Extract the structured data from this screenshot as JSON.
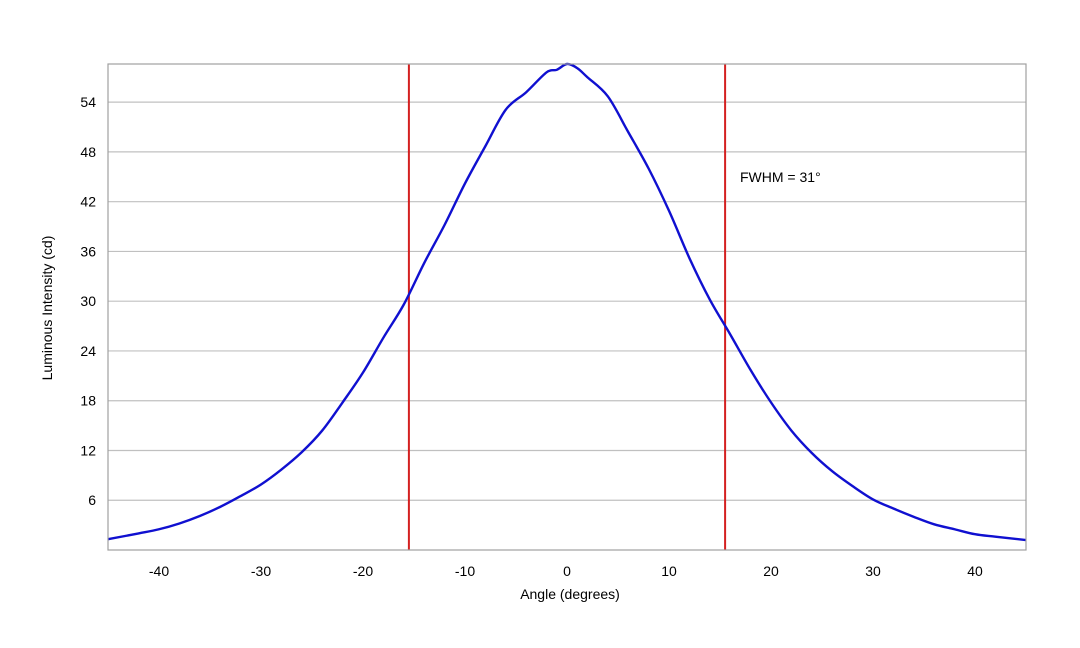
{
  "chart_data": {
    "type": "line",
    "title": "",
    "xlabel": "Angle (degrees)",
    "ylabel": "Luminous Intensity (cd)",
    "xlim": [
      -45,
      45
    ],
    "ylim": [
      0,
      58.6
    ],
    "x_ticks": [
      -40,
      -30,
      -20,
      -10,
      0,
      10,
      20,
      30,
      40
    ],
    "y_ticks": [
      6,
      12,
      18,
      24,
      30,
      36,
      42,
      48,
      54
    ],
    "grid": {
      "horizontal": true,
      "vertical": false
    },
    "annotation": "FWHM = 31°",
    "vertical_lines": [
      -15.5,
      15.5
    ],
    "colors": {
      "series": "#1010d0",
      "markers": "#d42020",
      "grid": "#c0c0c0",
      "frame": "#a0a0a0"
    },
    "series": [
      {
        "x": [
          -45,
          -42,
          -40,
          -38,
          -36,
          -34,
          -32,
          -30,
          -28,
          -26,
          -24,
          -22,
          -20,
          -18,
          -16,
          -14,
          -12,
          -10,
          -8,
          -6,
          -4,
          -2,
          -1,
          0,
          1,
          2,
          4,
          6,
          8,
          10,
          12,
          14,
          16,
          18,
          20,
          22,
          24,
          26,
          28,
          30,
          32,
          34,
          36,
          38,
          40,
          42,
          45
        ],
        "y": [
          1.3,
          2.0,
          2.5,
          3.2,
          4.1,
          5.2,
          6.5,
          7.9,
          9.7,
          11.8,
          14.4,
          17.8,
          21.4,
          25.6,
          29.6,
          34.6,
          39.2,
          44.2,
          48.7,
          53.1,
          55.2,
          57.6,
          57.9,
          58.6,
          58.1,
          57.0,
          54.7,
          50.4,
          46.0,
          40.9,
          35.2,
          30.2,
          26.0,
          21.7,
          17.8,
          14.4,
          11.7,
          9.5,
          7.7,
          6.1,
          5.0,
          4.0,
          3.1,
          2.5,
          1.9,
          1.6,
          1.2
        ]
      }
    ]
  }
}
